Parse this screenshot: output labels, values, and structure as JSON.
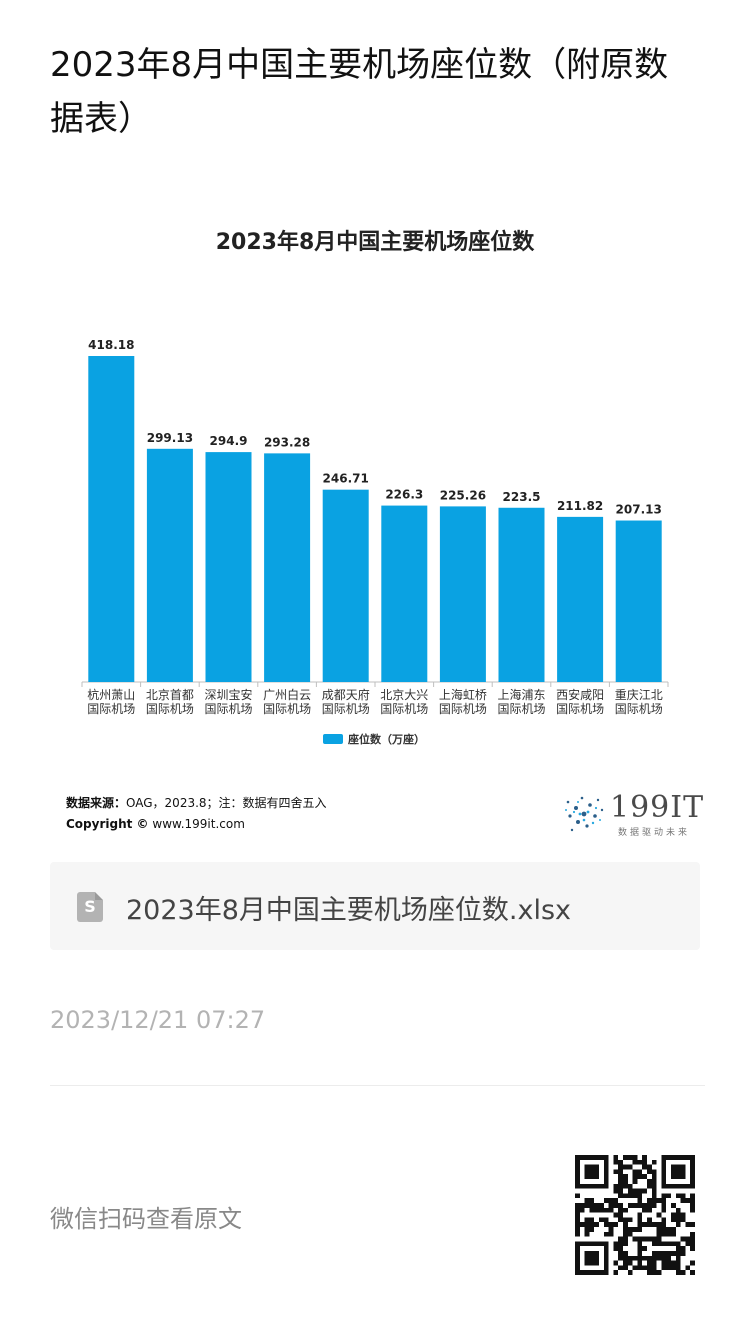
{
  "page": {
    "title": "2023年8月中国主要机场座位数（附原数据表）",
    "file_name": "2023年8月中国主要机场座位数.xlsx",
    "file_icon": "S",
    "timestamp": "2023/12/21 07:27",
    "qr_label": "微信扫码查看原文"
  },
  "chart_data": {
    "type": "bar",
    "title": "2023年8月中国主要机场座位数",
    "categories": [
      [
        "杭州萧山",
        "国际机场"
      ],
      [
        "北京首都",
        "国际机场"
      ],
      [
        "深圳宝安",
        "国际机场"
      ],
      [
        "广州白云",
        "国际机场"
      ],
      [
        "成都天府",
        "国际机场"
      ],
      [
        "北京大兴",
        "国际机场"
      ],
      [
        "上海虹桥",
        "国际机场"
      ],
      [
        "上海浦东",
        "国际机场"
      ],
      [
        "西安咸阳",
        "国际机场"
      ],
      [
        "重庆江北",
        "国际机场"
      ]
    ],
    "series": [
      {
        "name": "座位数（万座）",
        "color": "#0aa2e2",
        "values": [
          418.18,
          299.13,
          294.9,
          293.28,
          246.71,
          226.3,
          225.26,
          223.5,
          211.82,
          207.13
        ],
        "labels": [
          "418.18",
          "299.13",
          "294.9",
          "293.28",
          "246.71",
          "226.3",
          "225.26",
          "223.5",
          "211.82",
          "207.13"
        ]
      }
    ],
    "ylim": [
      0,
      430
    ],
    "grid": false,
    "legend": "bottom-center",
    "source_label": "数据来源：",
    "source_text": "OAG，2023.8；注：数据有四舍五入",
    "copyright_label": "Copyright ©",
    "copyright_text": "www.199it.com",
    "brand": "199IT",
    "brand_tagline": "数据驱动未来"
  }
}
